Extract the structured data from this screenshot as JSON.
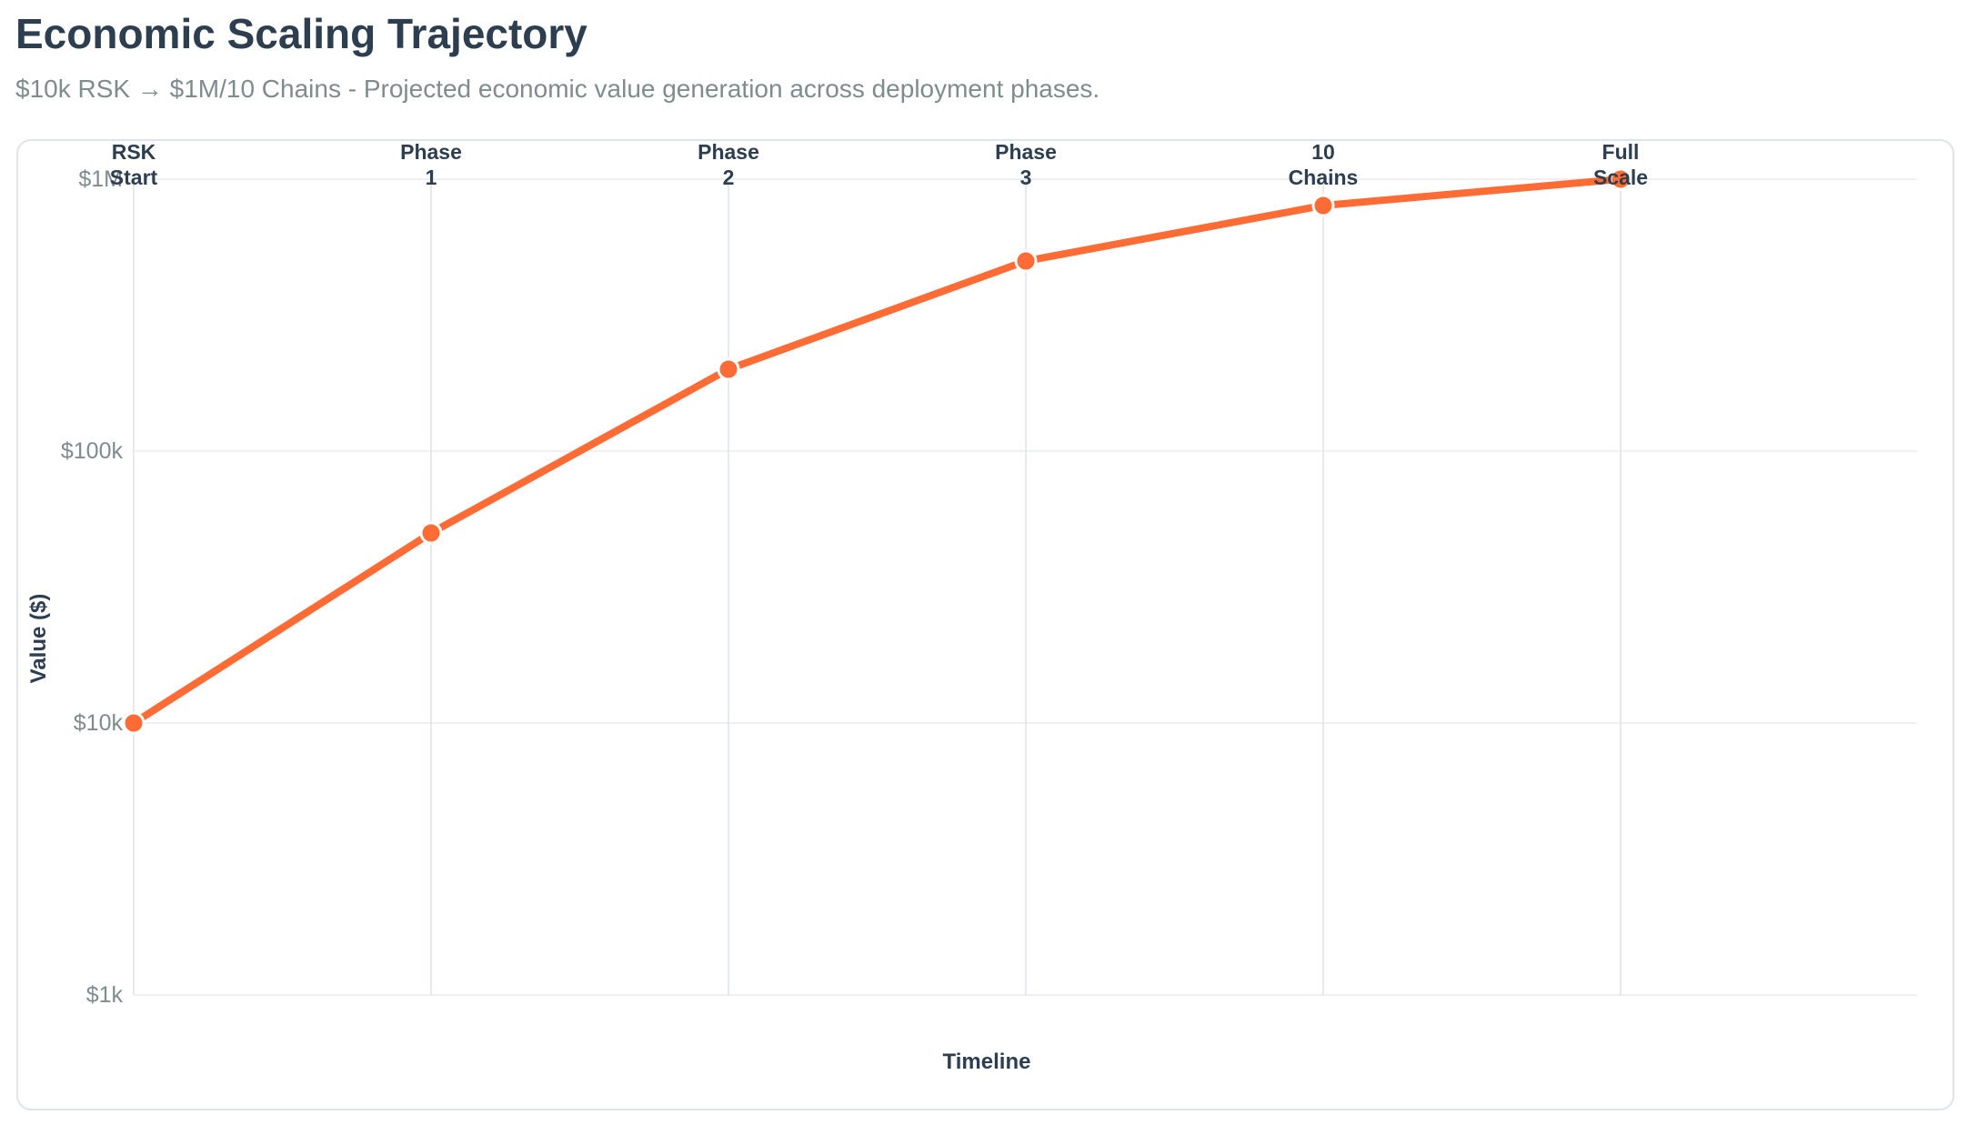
{
  "header": {
    "title": "Economic Scaling Trajectory",
    "subtitle": "$10k RSK → $1M/10 Chains - Projected economic value generation across deployment phases."
  },
  "chart_data": {
    "type": "line",
    "title": "",
    "xlabel": "Timeline",
    "ylabel": "Value ($)",
    "yscale": "log",
    "ylim": [
      1000,
      1000000
    ],
    "yticks": [
      {
        "value": 1000,
        "label": "$1k"
      },
      {
        "value": 10000,
        "label": "$10k"
      },
      {
        "value": 100000,
        "label": "$100k"
      },
      {
        "value": 1000000,
        "label": "$1M"
      }
    ],
    "categories": [
      [
        "RSK",
        "Start"
      ],
      [
        "Phase",
        "1"
      ],
      [
        "Phase",
        "2"
      ],
      [
        "Phase",
        "3"
      ],
      [
        "10",
        "Chains"
      ],
      [
        "Full",
        "Scale"
      ]
    ],
    "values": [
      10000,
      50000,
      200000,
      500000,
      800000,
      1000000
    ],
    "grid": true,
    "line_color": "#ff6b35",
    "grid_color": "#e8ecf0"
  }
}
